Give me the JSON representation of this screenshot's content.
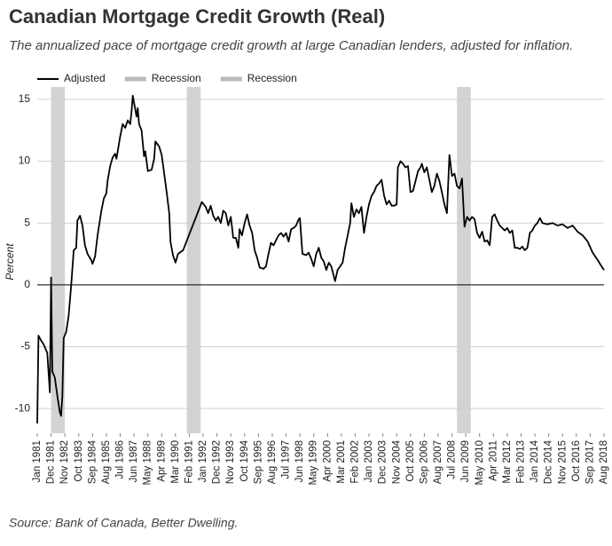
{
  "chart_data": {
    "type": "line",
    "title": "Canadian Mortgage Credit Growth (Real)",
    "subtitle": "The annualized pace of mortgage credit growth at large Canadian lenders, adjusted for inflation.",
    "y_label": "Percent",
    "source": "Source: Bank of Canada, Better Dwelling.",
    "xlim": [
      0,
      451
    ],
    "xticks": [
      {
        "value": 0,
        "label": "Jan 1981"
      },
      {
        "value": 11,
        "label": "Dec 1981"
      },
      {
        "value": 22,
        "label": "Nov 1982"
      },
      {
        "value": 33,
        "label": "Oct 1983"
      },
      {
        "value": 44,
        "label": "Sep 1984"
      },
      {
        "value": 55,
        "label": "Aug 1985"
      },
      {
        "value": 66,
        "label": "Jul 1986"
      },
      {
        "value": 77,
        "label": "Jun 1987"
      },
      {
        "value": 88,
        "label": "May 1988"
      },
      {
        "value": 99,
        "label": "Apr 1989"
      },
      {
        "value": 110,
        "label": "Mar 1990"
      },
      {
        "value": 121,
        "label": "Feb 1991"
      },
      {
        "value": 132,
        "label": "Jan 1992"
      },
      {
        "value": 143,
        "label": "Dec 1992"
      },
      {
        "value": 154,
        "label": "Nov 1993"
      },
      {
        "value": 165,
        "label": "Oct 1994"
      },
      {
        "value": 176,
        "label": "Sep 1995"
      },
      {
        "value": 187,
        "label": "Aug 1996"
      },
      {
        "value": 198,
        "label": "Jul 1997"
      },
      {
        "value": 209,
        "label": "Jun 1998"
      },
      {
        "value": 220,
        "label": "May 1999"
      },
      {
        "value": 231,
        "label": "Apr 2000"
      },
      {
        "value": 242,
        "label": "Mar 2001"
      },
      {
        "value": 253,
        "label": "Feb 2002"
      },
      {
        "value": 264,
        "label": "Jan 2003"
      },
      {
        "value": 275,
        "label": "Dec 2003"
      },
      {
        "value": 286,
        "label": "Nov 2004"
      },
      {
        "value": 297,
        "label": "Oct 2005"
      },
      {
        "value": 308,
        "label": "Sep 2006"
      },
      {
        "value": 319,
        "label": "Aug 2007"
      },
      {
        "value": 330,
        "label": "Jul 2008"
      },
      {
        "value": 341,
        "label": "Jun 2009"
      },
      {
        "value": 352,
        "label": "May 2010"
      },
      {
        "value": 363,
        "label": "Apr 2011"
      },
      {
        "value": 374,
        "label": "Mar 2012"
      },
      {
        "value": 385,
        "label": "Feb 2013"
      },
      {
        "value": 396,
        "label": "Jan 2014"
      },
      {
        "value": 407,
        "label": "Dec 2014"
      },
      {
        "value": 418,
        "label": "Nov 2015"
      },
      {
        "value": 429,
        "label": "Oct 2016"
      },
      {
        "value": 440,
        "label": "Sep 2017"
      },
      {
        "value": 451,
        "label": "Aug 2018"
      }
    ],
    "ylim": [
      -12,
      16
    ],
    "yticks": [
      -10,
      -5,
      0,
      5,
      10,
      15
    ],
    "grid": true,
    "series": [
      {
        "name": "Adjusted",
        "color": "#000000",
        "x": [
          0,
          1,
          3,
          5,
          8,
          10,
          11,
          12,
          14,
          16,
          18,
          19,
          20,
          21,
          23,
          25,
          27,
          29,
          31,
          32,
          34,
          36,
          38,
          40,
          43,
          44,
          46,
          48,
          51,
          53,
          55,
          56,
          58,
          60,
          62,
          63,
          66,
          68,
          70,
          72,
          74,
          75,
          76,
          78,
          79,
          80,
          81,
          83,
          85,
          86,
          88,
          91,
          93,
          94,
          97,
          99,
          101,
          103,
          105,
          106,
          108,
          110,
          112,
          116,
          131,
          134,
          136,
          138,
          140,
          142,
          144,
          146,
          148,
          150,
          152,
          154,
          156,
          158,
          160,
          161,
          163,
          165,
          167,
          169,
          171,
          173,
          175,
          177,
          180,
          182,
          184,
          186,
          188,
          190,
          192,
          194,
          196,
          198,
          200,
          202,
          204,
          206,
          208,
          209,
          211,
          214,
          216,
          218,
          220,
          222,
          224,
          226,
          228,
          230,
          232,
          234,
          237,
          239,
          241,
          243,
          245,
          247,
          249,
          250,
          252,
          254,
          256,
          258,
          260,
          262,
          264,
          266,
          268,
          270,
          272,
          274,
          276,
          278,
          280,
          282,
          284,
          286,
          287,
          289,
          291,
          293,
          295,
          297,
          299,
          301,
          303,
          305,
          306,
          308,
          310,
          312,
          314,
          316,
          318,
          320,
          322,
          324,
          326,
          328,
          330,
          332,
          334,
          336,
          338,
          340,
          342,
          344,
          346,
          348,
          350,
          352,
          354,
          356,
          358,
          360,
          362,
          364,
          366,
          368,
          370,
          372,
          374,
          376,
          378,
          380,
          382,
          384,
          386,
          388,
          390,
          392,
          394,
          396,
          398,
          400,
          402,
          406,
          410,
          414,
          418,
          422,
          426,
          430,
          434,
          438,
          442,
          446,
          449,
          451
        ],
        "values": [
          -11.2,
          -4.1,
          -4.5,
          -4.8,
          -5.5,
          -8.7,
          0.6,
          -7,
          -7.5,
          -9,
          -10.3,
          -10.6,
          -9,
          -4.3,
          -3.8,
          -2.5,
          0,
          2.8,
          3,
          5.2,
          5.6,
          4.8,
          3.2,
          2.5,
          2,
          1.7,
          2.3,
          4,
          6,
          7,
          7.4,
          8.4,
          9.6,
          10.3,
          10.6,
          10.2,
          12,
          13,
          12.7,
          13.3,
          13,
          14,
          15.3,
          14.2,
          13.6,
          14.3,
          13,
          12.5,
          10.4,
          10.8,
          9.2,
          9.3,
          10.2,
          11.6,
          11.2,
          10.5,
          9,
          7.5,
          5.8,
          3.5,
          2.4,
          1.8,
          2.5,
          2.8,
          6.7,
          6.3,
          5.8,
          6.4,
          5.6,
          5.2,
          5.5,
          5,
          6,
          5.8,
          4.8,
          5.5,
          3.8,
          3.8,
          3,
          4.5,
          4,
          5,
          5.7,
          4.8,
          4.2,
          2.8,
          2.2,
          1.4,
          1.3,
          1.5,
          2.5,
          3.4,
          3.2,
          3.6,
          4,
          4.2,
          3.9,
          4.2,
          3.5,
          4.5,
          4.6,
          4.8,
          5.3,
          5.4,
          2.5,
          2.4,
          2.6,
          2.1,
          1.5,
          2.5,
          3,
          2.2,
          1.9,
          1.2,
          1.8,
          1.5,
          0.3,
          1.2,
          1.5,
          1.8,
          3,
          4,
          5,
          6.6,
          5.5,
          6.1,
          5.8,
          6.3,
          4.2,
          5.5,
          6.5,
          7.2,
          7.5,
          8,
          8.2,
          8.5,
          7.2,
          6.5,
          6.8,
          6.4,
          6.4,
          6.5,
          9.5,
          10,
          9.8,
          9.5,
          9.6,
          7.5,
          7.6,
          8.4,
          9.2,
          9.5,
          9.8,
          9.1,
          9.5,
          8.5,
          7.5,
          8,
          9,
          8.4,
          7.5,
          6.5,
          5.8,
          10.5,
          8.8,
          9,
          8,
          7.8,
          8.6,
          4.7,
          5.5,
          5.2,
          5.5,
          5.3,
          4.2,
          3.8,
          4.3,
          3.5,
          3.6,
          3.2,
          5.5,
          5.7,
          5.2,
          4.8,
          4.6,
          4.4,
          4.6,
          4.2,
          4.4,
          3,
          3,
          2.9,
          3.1,
          2.8,
          3,
          4.2,
          4.4,
          4.8,
          5,
          5.4,
          5,
          4.9,
          5,
          4.8,
          4.9,
          4.6,
          4.8,
          4.3,
          4,
          3.5,
          2.6,
          2,
          1.5,
          1.2
        ]
      },
      {
        "name": "Recession",
        "color": "#d3d3d3",
        "spans": [
          [
            11,
            22
          ],
          [
            119,
            130
          ]
        ]
      },
      {
        "name": "Recession",
        "color": "#d3d3d3",
        "spans": [
          [
            334,
            345
          ]
        ]
      }
    ]
  }
}
